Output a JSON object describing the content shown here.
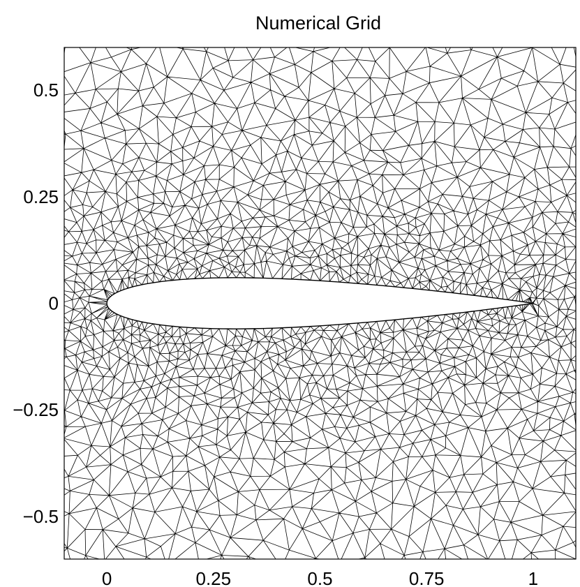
{
  "chart_data": {
    "type": "mesh",
    "title": "Numerical Grid",
    "xlim": [
      -0.1,
      1.1
    ],
    "ylim": [
      -0.6,
      0.6
    ],
    "x_ticks": [
      {
        "value": 0,
        "label": "0"
      },
      {
        "value": 0.25,
        "label": "0.25"
      },
      {
        "value": 0.5,
        "label": "0.5"
      },
      {
        "value": 0.75,
        "label": "0.75"
      },
      {
        "value": 1,
        "label": "1"
      }
    ],
    "y_ticks": [
      {
        "value": 0.5,
        "label": "0.5"
      },
      {
        "value": 0.25,
        "label": "0.25"
      },
      {
        "value": 0,
        "label": "0"
      },
      {
        "value": -0.25,
        "label": "−0.25"
      },
      {
        "value": -0.5,
        "label": "−0.5"
      }
    ],
    "airfoil": {
      "leading_edge": [
        0,
        0
      ],
      "trailing_edge": [
        1,
        0
      ],
      "max_thickness": 0.12,
      "camber": 0
    },
    "mesh_color": "#000000",
    "background": "#ffffff"
  }
}
